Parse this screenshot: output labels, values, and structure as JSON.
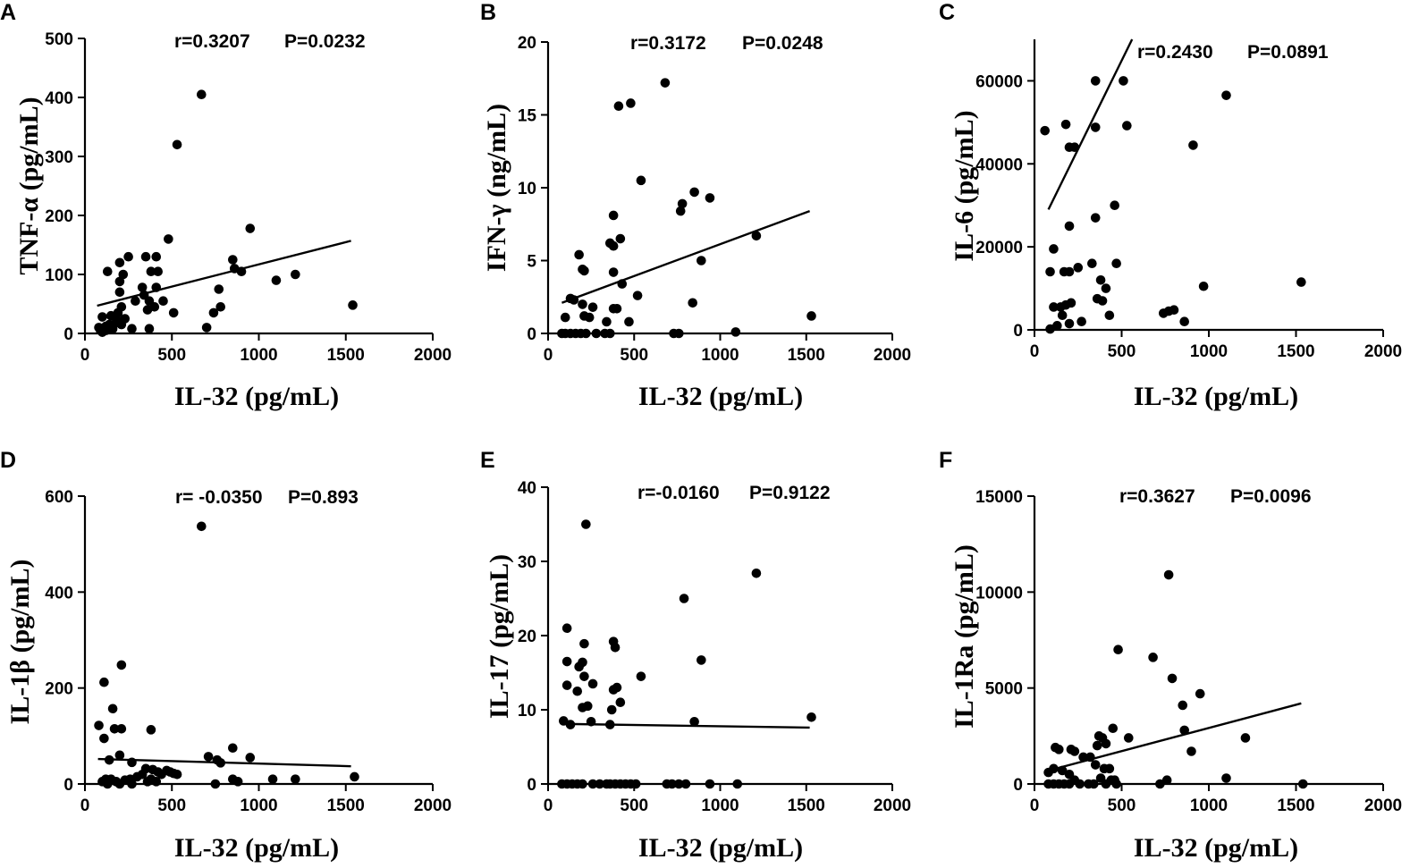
{
  "chart_data": [
    {
      "panel": "A",
      "type": "scatter",
      "xlabel": "IL-32 (pg/mL)",
      "ylabel": "TNF-α (pg/mL)",
      "r_text": "r=0.3207",
      "p_text": "P=0.0232",
      "xlim": [
        0,
        2000
      ],
      "ylim": [
        0,
        500
      ],
      "xticks": [
        0,
        500,
        1000,
        1500,
        2000
      ],
      "yticks": [
        0,
        100,
        200,
        300,
        400,
        500
      ],
      "xtick_labels": [
        "0",
        "500",
        "1000",
        "1500",
        "2000"
      ],
      "ytick_labels": [
        "0",
        "100",
        "200",
        "300",
        "400",
        "500"
      ],
      "regression": [
        [
          70,
          47
        ],
        [
          1530,
          157
        ]
      ],
      "points": [
        [
          670,
          405
        ],
        [
          530,
          320
        ],
        [
          950,
          178
        ],
        [
          480,
          160
        ],
        [
          250,
          130
        ],
        [
          350,
          130
        ],
        [
          410,
          130
        ],
        [
          130,
          105
        ],
        [
          200,
          120
        ],
        [
          850,
          125
        ],
        [
          380,
          105
        ],
        [
          420,
          105
        ],
        [
          860,
          110
        ],
        [
          900,
          105
        ],
        [
          1210,
          100
        ],
        [
          1100,
          90
        ],
        [
          330,
          78
        ],
        [
          410,
          78
        ],
        [
          200,
          88
        ],
        [
          220,
          100
        ],
        [
          770,
          75
        ],
        [
          200,
          70
        ],
        [
          340,
          65
        ],
        [
          370,
          55
        ],
        [
          450,
          55
        ],
        [
          290,
          55
        ],
        [
          210,
          45
        ],
        [
          400,
          45
        ],
        [
          780,
          45
        ],
        [
          360,
          40
        ],
        [
          510,
          35
        ],
        [
          190,
          35
        ],
        [
          740,
          35
        ],
        [
          150,
          30
        ],
        [
          100,
          28
        ],
        [
          180,
          25
        ],
        [
          230,
          25
        ],
        [
          180,
          18
        ],
        [
          140,
          15
        ],
        [
          80,
          10
        ],
        [
          90,
          5
        ],
        [
          100,
          2
        ],
        [
          120,
          5
        ],
        [
          160,
          8
        ],
        [
          270,
          8
        ],
        [
          370,
          8
        ],
        [
          700,
          10
        ],
        [
          1540,
          48
        ],
        [
          120,
          12
        ],
        [
          210,
          15
        ]
      ]
    },
    {
      "panel": "B",
      "type": "scatter",
      "xlabel": "IL-32 (pg/mL)",
      "ylabel": "IFN-γ (ng/mL)",
      "r_text": "r=0.3172",
      "p_text": "P=0.0248",
      "xlim": [
        0,
        2000
      ],
      "ylim": [
        0,
        20
      ],
      "xticks": [
        0,
        500,
        1000,
        1500,
        2000
      ],
      "yticks": [
        0,
        5,
        10,
        15,
        20
      ],
      "xtick_labels": [
        "0",
        "500",
        "1000",
        "1500",
        "2000"
      ],
      "ytick_labels": [
        "0",
        "5",
        "10",
        "15",
        "20"
      ],
      "regression": [
        [
          80,
          2.1
        ],
        [
          1520,
          8.4
        ]
      ],
      "points": [
        [
          680,
          17.2
        ],
        [
          480,
          15.8
        ],
        [
          410,
          15.6
        ],
        [
          540,
          10.5
        ],
        [
          850,
          9.7
        ],
        [
          940,
          9.3
        ],
        [
          780,
          8.9
        ],
        [
          770,
          8.4
        ],
        [
          380,
          8.1
        ],
        [
          1210,
          6.7
        ],
        [
          420,
          6.5
        ],
        [
          360,
          6.2
        ],
        [
          380,
          6.0
        ],
        [
          180,
          5.4
        ],
        [
          890,
          5.0
        ],
        [
          200,
          4.4
        ],
        [
          210,
          4.3
        ],
        [
          380,
          4.2
        ],
        [
          430,
          3.4
        ],
        [
          520,
          2.6
        ],
        [
          130,
          2.4
        ],
        [
          150,
          2.3
        ],
        [
          840,
          2.1
        ],
        [
          200,
          2.0
        ],
        [
          260,
          1.8
        ],
        [
          380,
          1.7
        ],
        [
          400,
          1.7
        ],
        [
          210,
          1.2
        ],
        [
          240,
          1.1
        ],
        [
          100,
          1.1
        ],
        [
          340,
          0.8
        ],
        [
          470,
          0.8
        ],
        [
          1530,
          1.2
        ],
        [
          1090,
          0.1
        ],
        [
          80,
          0
        ],
        [
          100,
          0
        ],
        [
          130,
          0
        ],
        [
          160,
          0
        ],
        [
          190,
          0
        ],
        [
          220,
          0
        ],
        [
          280,
          0
        ],
        [
          330,
          0
        ],
        [
          360,
          0
        ],
        [
          730,
          0
        ],
        [
          760,
          0
        ]
      ]
    },
    {
      "panel": "C",
      "type": "scatter",
      "xlabel": "IL-32 (pg/mL)",
      "ylabel": "IL-6 (pg/mL)",
      "r_text": "r=0.2430",
      "p_text": "P=0.0891",
      "xlim": [
        0,
        2000
      ],
      "ylim": [
        0,
        70000
      ],
      "xticks": [
        0,
        500,
        1000,
        1500,
        2000
      ],
      "yticks": [
        0,
        20000,
        40000,
        60000
      ],
      "xtick_labels": [
        "0",
        "500",
        "1000",
        "1500",
        "2000"
      ],
      "ytick_labels": [
        "0",
        "20000",
        "40000",
        "60000"
      ],
      "regression": [
        [
          80,
          29000
        ],
        [
          560,
          70000
        ]
      ],
      "points": [
        [
          350,
          60000
        ],
        [
          510,
          60000
        ],
        [
          1100,
          56500
        ],
        [
          180,
          49500
        ],
        [
          530,
          49200
        ],
        [
          350,
          48800
        ],
        [
          60,
          48000
        ],
        [
          200,
          44000
        ],
        [
          230,
          44000
        ],
        [
          910,
          44500
        ],
        [
          460,
          30000
        ],
        [
          350,
          27000
        ],
        [
          200,
          25000
        ],
        [
          110,
          19500
        ],
        [
          90,
          14000
        ],
        [
          170,
          14000
        ],
        [
          200,
          14000
        ],
        [
          250,
          15000
        ],
        [
          330,
          16000
        ],
        [
          470,
          16000
        ],
        [
          380,
          12000
        ],
        [
          410,
          10000
        ],
        [
          970,
          10500
        ],
        [
          1530,
          11500
        ],
        [
          180,
          6000
        ],
        [
          210,
          6500
        ],
        [
          110,
          5500
        ],
        [
          150,
          5500
        ],
        [
          390,
          7000
        ],
        [
          360,
          7500
        ],
        [
          270,
          2000
        ],
        [
          430,
          3500
        ],
        [
          160,
          3500
        ],
        [
          200,
          1500
        ],
        [
          740,
          4000
        ],
        [
          770,
          4500
        ],
        [
          800,
          4800
        ],
        [
          860,
          2000
        ],
        [
          130,
          1000
        ],
        [
          90,
          200
        ]
      ]
    },
    {
      "panel": "D",
      "type": "scatter",
      "xlabel": "IL-32 (pg/mL)",
      "ylabel": "IL-1β (pg/mL)",
      "r_text": "r= -0.0350",
      "p_text": "P=0.893",
      "xlim": [
        0,
        2000
      ],
      "ylim": [
        0,
        600
      ],
      "xticks": [
        0,
        500,
        1000,
        1500,
        2000
      ],
      "yticks": [
        0,
        200,
        400,
        600
      ],
      "xtick_labels": [
        "0",
        "500",
        "1000",
        "1500",
        "2000"
      ],
      "ytick_labels": [
        "0",
        "200",
        "400",
        "600"
      ],
      "regression": [
        [
          75,
          52
        ],
        [
          1530,
          37
        ]
      ],
      "points": [
        [
          670,
          537
        ],
        [
          210,
          248
        ],
        [
          110,
          212
        ],
        [
          160,
          157
        ],
        [
          80,
          122
        ],
        [
          170,
          115
        ],
        [
          210,
          115
        ],
        [
          380,
          113
        ],
        [
          110,
          95
        ],
        [
          850,
          75
        ],
        [
          200,
          60
        ],
        [
          710,
          57
        ],
        [
          950,
          55
        ],
        [
          760,
          50
        ],
        [
          780,
          44
        ],
        [
          270,
          45
        ],
        [
          140,
          50
        ],
        [
          350,
          32
        ],
        [
          390,
          30
        ],
        [
          420,
          25
        ],
        [
          470,
          28
        ],
        [
          490,
          25
        ],
        [
          510,
          22
        ],
        [
          530,
          20
        ],
        [
          440,
          20
        ],
        [
          330,
          20
        ],
        [
          300,
          15
        ],
        [
          260,
          10
        ],
        [
          100,
          5
        ],
        [
          120,
          10
        ],
        [
          150,
          10
        ],
        [
          180,
          5
        ],
        [
          230,
          8
        ],
        [
          360,
          5
        ],
        [
          380,
          10
        ],
        [
          410,
          5
        ],
        [
          850,
          10
        ],
        [
          880,
          5
        ],
        [
          1080,
          10
        ],
        [
          1210,
          10
        ],
        [
          1550,
          15
        ],
        [
          130,
          0
        ],
        [
          200,
          0
        ],
        [
          270,
          0
        ],
        [
          750,
          0
        ]
      ]
    },
    {
      "panel": "E",
      "type": "scatter",
      "xlabel": "IL-32 (pg/mL)",
      "ylabel": "IL-17 (pg/mL)",
      "r_text": "r=-0.0160",
      "p_text": "P=0.9122",
      "xlim": [
        0,
        2000
      ],
      "ylim": [
        0,
        40
      ],
      "xticks": [
        0,
        500,
        1000,
        1500,
        2000
      ],
      "yticks": [
        0,
        10,
        20,
        30,
        40
      ],
      "xtick_labels": [
        "0",
        "500",
        "1000",
        "1500",
        "2000"
      ],
      "ytick_labels": [
        "0",
        "10",
        "20",
        "30",
        "40"
      ],
      "regression": [
        [
          80,
          8.1
        ],
        [
          1520,
          7.6
        ]
      ],
      "points": [
        [
          220,
          35
        ],
        [
          1210,
          28.4
        ],
        [
          790,
          25
        ],
        [
          110,
          21
        ],
        [
          380,
          19.2
        ],
        [
          210,
          18.9
        ],
        [
          390,
          18.4
        ],
        [
          890,
          16.7
        ],
        [
          110,
          16.5
        ],
        [
          200,
          16.4
        ],
        [
          180,
          15.8
        ],
        [
          210,
          14.5
        ],
        [
          540,
          14.5
        ],
        [
          260,
          13.5
        ],
        [
          110,
          13.3
        ],
        [
          400,
          13
        ],
        [
          380,
          12.7
        ],
        [
          170,
          12.5
        ],
        [
          230,
          10.5
        ],
        [
          200,
          10.3
        ],
        [
          420,
          11
        ],
        [
          370,
          10
        ],
        [
          90,
          8.5
        ],
        [
          130,
          8
        ],
        [
          360,
          8
        ],
        [
          250,
          8.4
        ],
        [
          850,
          8.4
        ],
        [
          1530,
          9
        ],
        [
          80,
          0
        ],
        [
          110,
          0
        ],
        [
          140,
          0
        ],
        [
          170,
          0
        ],
        [
          200,
          0
        ],
        [
          260,
          0
        ],
        [
          300,
          0
        ],
        [
          340,
          0
        ],
        [
          360,
          0
        ],
        [
          390,
          0
        ],
        [
          420,
          0
        ],
        [
          450,
          0
        ],
        [
          480,
          0
        ],
        [
          510,
          0
        ],
        [
          690,
          0
        ],
        [
          720,
          0
        ],
        [
          760,
          0
        ],
        [
          800,
          0
        ],
        [
          940,
          0
        ],
        [
          1100,
          0
        ]
      ]
    },
    {
      "panel": "F",
      "type": "scatter",
      "xlabel": "IL-32 (pg/mL)",
      "ylabel": "IL-1Ra (pg/mL)",
      "r_text": "r=0.3627",
      "p_text": "P=0.0096",
      "xlim": [
        0,
        2000
      ],
      "ylim": [
        0,
        15000
      ],
      "xticks": [
        0,
        500,
        1000,
        1500,
        2000
      ],
      "yticks": [
        0,
        5000,
        10000,
        15000
      ],
      "xtick_labels": [
        "0",
        "500",
        "1000",
        "1500",
        "2000"
      ],
      "ytick_labels": [
        "0",
        "5000",
        "10000",
        "15000"
      ],
      "regression": [
        [
          80,
          700
        ],
        [
          1530,
          4200
        ]
      ],
      "points": [
        [
          770,
          10900
        ],
        [
          480,
          7000
        ],
        [
          680,
          6600
        ],
        [
          790,
          5500
        ],
        [
          950,
          4700
        ],
        [
          850,
          4100
        ],
        [
          860,
          2800
        ],
        [
          1210,
          2400
        ],
        [
          540,
          2400
        ],
        [
          450,
          2900
        ],
        [
          370,
          2500
        ],
        [
          390,
          2400
        ],
        [
          410,
          2100
        ],
        [
          360,
          2000
        ],
        [
          900,
          1700
        ],
        [
          120,
          1900
        ],
        [
          140,
          1800
        ],
        [
          210,
          1800
        ],
        [
          230,
          1700
        ],
        [
          280,
          1400
        ],
        [
          320,
          1400
        ],
        [
          350,
          1000
        ],
        [
          400,
          800
        ],
        [
          430,
          800
        ],
        [
          160,
          700
        ],
        [
          80,
          600
        ],
        [
          110,
          800
        ],
        [
          200,
          500
        ],
        [
          230,
          200
        ],
        [
          380,
          300
        ],
        [
          440,
          200
        ],
        [
          460,
          200
        ],
        [
          1100,
          300
        ],
        [
          760,
          200
        ],
        [
          80,
          0
        ],
        [
          110,
          0
        ],
        [
          140,
          0
        ],
        [
          170,
          0
        ],
        [
          200,
          0
        ],
        [
          260,
          0
        ],
        [
          310,
          0
        ],
        [
          340,
          0
        ],
        [
          410,
          0
        ],
        [
          470,
          0
        ],
        [
          720,
          0
        ],
        [
          1540,
          0
        ]
      ]
    }
  ]
}
